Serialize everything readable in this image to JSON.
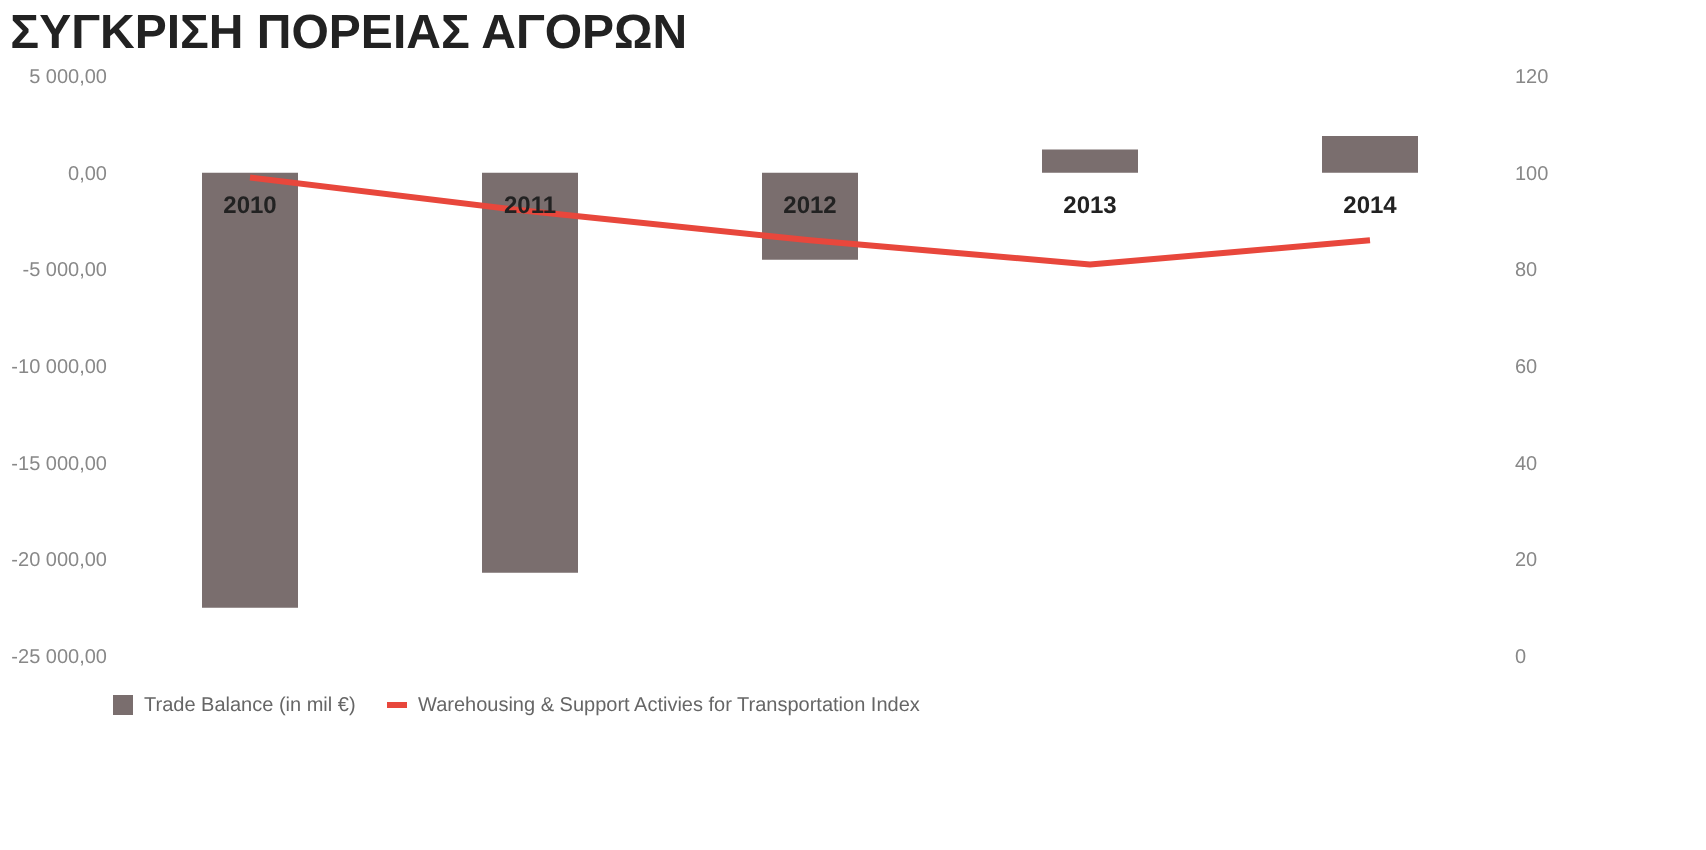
{
  "chart_data": {
    "type": "bar",
    "title": "ΣΥΓΚΡΙΣΗ ΠΟΡΕΙΑΣ ΑΓΟΡΩΝ",
    "categories": [
      "2010",
      "2011",
      "2012",
      "2013",
      "2014"
    ],
    "series": [
      {
        "name": "Trade Balance (in  mil  €)",
        "color": "#7a6e6e",
        "values": [
          -22500,
          -20700,
          -4500,
          1200,
          1900
        ]
      },
      {
        "name": "Warehousing & Support Activies for Transportation Index",
        "color": "#e8473c",
        "type": "line",
        "axis": "y2",
        "values": [
          99,
          92,
          86,
          81,
          86
        ]
      }
    ],
    "ylim": [
      -25000,
      5000
    ],
    "yticks": [
      {
        "value": 5000,
        "label": "5 000,00"
      },
      {
        "value": 0,
        "label": "0,00"
      },
      {
        "value": -5000,
        "label": "-5 000,00"
      },
      {
        "value": -10000,
        "label": "-10 000,00"
      },
      {
        "value": -15000,
        "label": "-15 000,00"
      },
      {
        "value": -20000,
        "label": "-20 000,00"
      },
      {
        "value": -25000,
        "label": "-25 000,00"
      }
    ],
    "y2lim": [
      0,
      120
    ],
    "y2ticks": [
      0,
      20,
      40,
      60,
      80,
      100,
      120
    ],
    "grid": false,
    "legend": "bottom"
  }
}
